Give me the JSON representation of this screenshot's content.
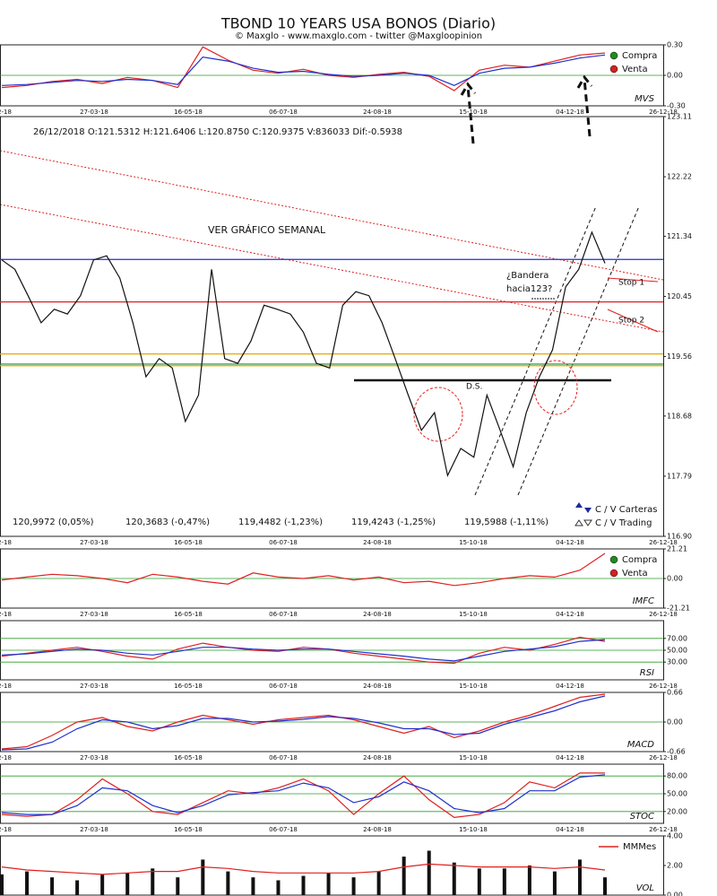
{
  "chart_data": [
    {
      "type": "line",
      "title": "TBOND 10 YEARS USA BONOS (Diario)",
      "subtitle": "© Maxglo - www.maxglo.com - twitter @Maxgloopinion",
      "date_labels": [
        "2-18",
        "27-03-18",
        "16-05-18",
        "06-07-18",
        "24-08-18",
        "15-10-18",
        "04-12-18",
        "26-12-18"
      ],
      "label": "MVS",
      "ylim": [
        -0.3,
        0.3
      ],
      "yticks": [
        {
          "value": 0.3,
          "label": "0.30"
        },
        {
          "value": 0,
          "label": "0.00"
        },
        {
          "value": -0.3,
          "label": "-0.30"
        }
      ],
      "grid": [
        {
          "value": 0,
          "label": "0.00"
        }
      ],
      "grid_color": "#2a9d2a",
      "legend": [
        {
          "name": "Compra",
          "color": "#1e8c1e"
        },
        {
          "name": "Venta",
          "color": "#d62020"
        }
      ],
      "series": [
        {
          "color": "#e02020",
          "values": [
            -0.12,
            -0.1,
            -0.06,
            -0.04,
            -0.08,
            -0.02,
            -0.05,
            -0.12,
            0.28,
            0.15,
            0.05,
            0.02,
            0.06,
            0.0,
            -0.02,
            0.01,
            0.03,
            -0.01,
            -0.15,
            0.05,
            0.1,
            0.08,
            0.14,
            0.2,
            0.22
          ]
        },
        {
          "color": "#2030d0",
          "values": [
            -0.1,
            -0.09,
            -0.07,
            -0.05,
            -0.06,
            -0.04,
            -0.05,
            -0.09,
            0.18,
            0.14,
            0.07,
            0.03,
            0.04,
            0.01,
            -0.01,
            0.0,
            0.02,
            0.0,
            -0.1,
            0.02,
            0.07,
            0.08,
            0.12,
            0.17,
            0.2
          ]
        }
      ]
    },
    {
      "type": "line",
      "info": "26/12/2018  O:121.5312  H:121.6406  L:120.8750  C:120.9375  V:836033  Dif:-0.5938",
      "ylim": [
        116.9,
        123.11
      ],
      "yticks": [
        123.11,
        122.22,
        121.34,
        120.45,
        119.56,
        118.68,
        117.79,
        {
          "value": 116.9,
          "label": "116.90"
        }
      ],
      "annotations": [
        "VER GRÁFICO SEMANAL",
        "¿Bandera",
        "hacia123?",
        "Stop 1",
        "Stop 2",
        "D.S."
      ],
      "legend": [
        {
          "name": "C / V Carteras",
          "color": "#1a2a9a"
        },
        {
          "name": "C / V Trading",
          "color": "#333333"
        }
      ],
      "levels": [
        {
          "value": 120.9972,
          "label": "120,9972 (0,05%)",
          "color": "#2030d0"
        },
        {
          "value": 120.3683,
          "label": "120,3683 (-0,47%)",
          "color": "#e02020"
        },
        {
          "value": 119.4482,
          "label": "119,4482 (-1,23%)",
          "color": "#1e8c1e"
        },
        {
          "value": 119.4243,
          "label": "119,4243 (-1,25%)",
          "color": "#f0a000"
        },
        {
          "value": 119.5988,
          "label": "119,5988 (-1,11%)",
          "color": "#e8a800"
        }
      ],
      "series": [
        {
          "color": "#111111",
          "values": [
            120.99,
            120.85,
            120.46,
            120.06,
            120.26,
            120.19,
            120.46,
            120.99,
            121.05,
            120.72,
            120.06,
            119.26,
            119.53,
            119.39,
            118.6,
            118.99,
            120.85,
            119.53,
            119.46,
            119.79,
            120.32,
            120.26,
            120.19,
            119.92,
            119.46,
            119.39,
            120.32,
            120.52,
            120.46,
            120.06,
            119.53,
            118.99,
            118.47,
            118.73,
            117.8,
            118.2,
            118.07,
            118.99,
            118.47,
            117.93,
            118.73,
            119.26,
            119.66,
            120.59,
            120.85,
            121.4,
            120.94
          ]
        }
      ]
    },
    {
      "type": "line",
      "label": "IMFC",
      "ylim": [
        -21.21,
        21.21
      ],
      "yticks": [
        21.21,
        {
          "value": 0,
          "label": "0.00"
        },
        -21.21
      ],
      "grid": [
        {
          "value": 0,
          "label": "0.00"
        }
      ],
      "grid_color": "#2a9d2a",
      "legend": [
        {
          "name": "Compra",
          "color": "#1e8c1e"
        },
        {
          "name": "Venta",
          "color": "#d62020"
        }
      ],
      "series": [
        {
          "color": "#e02020",
          "values": [
            -1,
            1,
            3,
            2,
            0,
            -3,
            3,
            1,
            -2,
            -4,
            4,
            1,
            0,
            2,
            -1,
            1,
            -3,
            -2,
            -5,
            -3,
            0,
            2,
            1,
            6,
            18
          ]
        }
      ]
    },
    {
      "type": "line",
      "label": "RSI",
      "ylim": [
        0,
        100
      ],
      "yticks": [
        {
          "value": 70,
          "label": "70.00"
        },
        {
          "value": 50,
          "label": "50.00"
        },
        {
          "value": 30,
          "label": "30.00"
        }
      ],
      "grid": [
        {
          "value": 70,
          "label": "70.00"
        },
        {
          "value": 50,
          "label": "50.00"
        },
        {
          "value": 30,
          "label": "30.00"
        }
      ],
      "grid_color": "#2a9d2a",
      "series": [
        {
          "color": "#e02020",
          "values": [
            40,
            45,
            50,
            55,
            48,
            40,
            35,
            52,
            62,
            55,
            50,
            48,
            55,
            52,
            45,
            40,
            35,
            30,
            28,
            45,
            55,
            50,
            60,
            72,
            65
          ]
        },
        {
          "color": "#2030d0",
          "values": [
            42,
            44,
            48,
            52,
            50,
            45,
            42,
            48,
            55,
            55,
            52,
            50,
            52,
            52,
            48,
            44,
            40,
            35,
            32,
            40,
            48,
            52,
            56,
            65,
            68
          ]
        }
      ]
    },
    {
      "type": "line",
      "label": "MACD",
      "ylim": [
        -0.66,
        0.66
      ],
      "yticks": [
        0.66,
        {
          "value": 0,
          "label": "0.00"
        },
        -0.66
      ],
      "grid": [
        {
          "value": 0,
          "label": "0.00"
        }
      ],
      "grid_color": "#2a9d2a",
      "series": [
        {
          "color": "#e02020",
          "values": [
            -0.6,
            -0.55,
            -0.3,
            0.0,
            0.1,
            -0.1,
            -0.2,
            0.0,
            0.15,
            0.05,
            -0.05,
            0.05,
            0.1,
            0.15,
            0.05,
            -0.1,
            -0.25,
            -0.1,
            -0.35,
            -0.2,
            0.0,
            0.15,
            0.35,
            0.55,
            0.62
          ]
        },
        {
          "color": "#2030d0",
          "values": [
            -0.62,
            -0.6,
            -0.45,
            -0.15,
            0.05,
            0.0,
            -0.15,
            -0.08,
            0.08,
            0.08,
            0.0,
            0.02,
            0.06,
            0.12,
            0.08,
            -0.02,
            -0.15,
            -0.15,
            -0.28,
            -0.25,
            -0.05,
            0.1,
            0.25,
            0.45,
            0.58
          ]
        }
      ]
    },
    {
      "type": "line",
      "label": "STOC",
      "ylim": [
        0,
        100
      ],
      "yticks": [
        {
          "value": 80,
          "label": "80.00"
        },
        {
          "value": 50,
          "label": "50.00"
        },
        {
          "value": 20,
          "label": "20.00"
        }
      ],
      "grid": [
        {
          "value": 80,
          "label": "80.00"
        },
        {
          "value": 50,
          "label": "50.00"
        },
        {
          "value": 20,
          "label": "20.00"
        }
      ],
      "grid_color": "#2a9d2a",
      "series": [
        {
          "color": "#e02020",
          "values": [
            15,
            12,
            15,
            40,
            75,
            50,
            20,
            15,
            35,
            55,
            50,
            60,
            75,
            55,
            15,
            50,
            80,
            40,
            10,
            15,
            35,
            70,
            60,
            85,
            85
          ]
        },
        {
          "color": "#2030d0",
          "values": [
            18,
            15,
            15,
            30,
            60,
            55,
            30,
            18,
            30,
            48,
            52,
            55,
            68,
            60,
            35,
            45,
            70,
            55,
            25,
            18,
            25,
            55,
            55,
            78,
            82
          ]
        }
      ]
    },
    {
      "type": "bar",
      "label": "VOL",
      "ylim": [
        0,
        4
      ],
      "yticks": [
        {
          "value": 4,
          "label": "4.00"
        },
        {
          "value": 2,
          "label": "2.00"
        },
        {
          "value": 0,
          "label": "0.00"
        }
      ],
      "series": [
        {
          "type": "bar",
          "color": "#111111",
          "values": [
            1.4,
            1.6,
            1.2,
            1.0,
            1.4,
            1.5,
            1.8,
            1.2,
            2.4,
            1.6,
            1.2,
            1.0,
            1.3,
            1.5,
            1.2,
            1.6,
            2.6,
            3.0,
            2.2,
            1.8,
            1.8,
            2.0,
            1.6,
            2.4,
            1.2
          ]
        },
        {
          "name": "MMMes",
          "color": "#e02020",
          "values": [
            1.9,
            1.7,
            1.6,
            1.5,
            1.4,
            1.5,
            1.6,
            1.6,
            1.9,
            1.8,
            1.6,
            1.5,
            1.5,
            1.5,
            1.5,
            1.6,
            1.9,
            2.1,
            2.0,
            1.9,
            1.9,
            1.9,
            1.8,
            1.9,
            1.7
          ]
        }
      ]
    }
  ]
}
